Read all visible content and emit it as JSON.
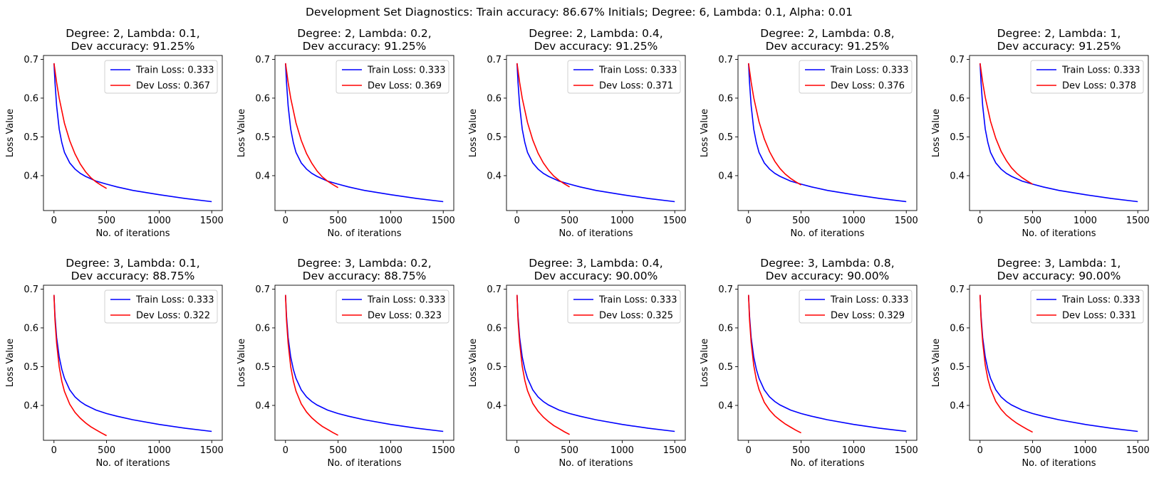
{
  "figure": {
    "suptitle": "Development Set Diagnostics: Train accuracy: 86.67% Initials; Degree: 6, Lambda: 0.1, Alpha: 0.01"
  },
  "colors": {
    "train": "#0000ff",
    "dev": "#ff0000"
  },
  "chart_data": [
    {
      "type": "line",
      "title_line1": "Degree: 2, Lambda: 0.1,",
      "title_line2": "Dev accuracy: 91.25%",
      "xlabel": "No. of iterations",
      "ylabel": "Loss Value",
      "xlim": [
        -100,
        1600
      ],
      "ylim": [
        0.31,
        0.71
      ],
      "xticks": [
        "0",
        "500",
        "1000",
        "1500"
      ],
      "yticks": [
        "0.4",
        "0.5",
        "0.6",
        "0.7"
      ],
      "series": [
        {
          "name": "Train Loss: 0.333",
          "x": [
            0,
            10,
            25,
            50,
            75,
            100,
            150,
            200,
            250,
            300,
            400,
            500,
            600,
            750,
            1000,
            1250,
            1500
          ],
          "y": [
            0.69,
            0.64,
            0.58,
            0.52,
            0.485,
            0.46,
            0.433,
            0.417,
            0.406,
            0.398,
            0.386,
            0.378,
            0.371,
            0.362,
            0.351,
            0.341,
            0.333
          ]
        },
        {
          "name": "Dev Loss: 0.367",
          "x": [
            0,
            25,
            50,
            100,
            150,
            200,
            250,
            300,
            350,
            400,
            450,
            500
          ],
          "y": [
            0.69,
            0.64,
            0.6,
            0.535,
            0.49,
            0.456,
            0.43,
            0.41,
            0.395,
            0.384,
            0.375,
            0.367
          ]
        }
      ]
    },
    {
      "type": "line",
      "title_line1": "Degree: 2, Lambda: 0.2,",
      "title_line2": "Dev accuracy: 91.25%",
      "xlabel": "No. of iterations",
      "ylabel": "Loss Value",
      "xlim": [
        -100,
        1600
      ],
      "ylim": [
        0.31,
        0.71
      ],
      "xticks": [
        "0",
        "500",
        "1000",
        "1500"
      ],
      "yticks": [
        "0.4",
        "0.5",
        "0.6",
        "0.7"
      ],
      "series": [
        {
          "name": "Train Loss: 0.333",
          "x": [
            0,
            10,
            25,
            50,
            75,
            100,
            150,
            200,
            250,
            300,
            400,
            500,
            600,
            750,
            1000,
            1250,
            1500
          ],
          "y": [
            0.69,
            0.64,
            0.58,
            0.52,
            0.485,
            0.46,
            0.433,
            0.417,
            0.406,
            0.398,
            0.386,
            0.378,
            0.371,
            0.362,
            0.351,
            0.341,
            0.333
          ]
        },
        {
          "name": "Dev Loss: 0.369",
          "x": [
            0,
            25,
            50,
            100,
            150,
            200,
            250,
            300,
            350,
            400,
            450,
            500
          ],
          "y": [
            0.69,
            0.64,
            0.6,
            0.536,
            0.491,
            0.457,
            0.432,
            0.412,
            0.397,
            0.386,
            0.377,
            0.369
          ]
        }
      ]
    },
    {
      "type": "line",
      "title_line1": "Degree: 2, Lambda: 0.4,",
      "title_line2": "Dev accuracy: 91.25%",
      "xlabel": "No. of iterations",
      "ylabel": "Loss Value",
      "xlim": [
        -100,
        1600
      ],
      "ylim": [
        0.31,
        0.71
      ],
      "xticks": [
        "0",
        "500",
        "1000",
        "1500"
      ],
      "yticks": [
        "0.4",
        "0.5",
        "0.6",
        "0.7"
      ],
      "series": [
        {
          "name": "Train Loss: 0.333",
          "x": [
            0,
            10,
            25,
            50,
            75,
            100,
            150,
            200,
            250,
            300,
            400,
            500,
            600,
            750,
            1000,
            1250,
            1500
          ],
          "y": [
            0.69,
            0.64,
            0.58,
            0.52,
            0.485,
            0.46,
            0.433,
            0.417,
            0.406,
            0.398,
            0.386,
            0.378,
            0.371,
            0.362,
            0.351,
            0.341,
            0.333
          ]
        },
        {
          "name": "Dev Loss: 0.371",
          "x": [
            0,
            25,
            50,
            100,
            150,
            200,
            250,
            300,
            350,
            400,
            450,
            500
          ],
          "y": [
            0.69,
            0.64,
            0.6,
            0.537,
            0.492,
            0.458,
            0.433,
            0.414,
            0.399,
            0.388,
            0.379,
            0.371
          ]
        }
      ]
    },
    {
      "type": "line",
      "title_line1": "Degree: 2, Lambda: 0.8,",
      "title_line2": "Dev accuracy: 91.25%",
      "xlabel": "No. of iterations",
      "ylabel": "Loss Value",
      "xlim": [
        -100,
        1600
      ],
      "ylim": [
        0.31,
        0.71
      ],
      "xticks": [
        "0",
        "500",
        "1000",
        "1500"
      ],
      "yticks": [
        "0.4",
        "0.5",
        "0.6",
        "0.7"
      ],
      "series": [
        {
          "name": "Train Loss: 0.333",
          "x": [
            0,
            10,
            25,
            50,
            75,
            100,
            150,
            200,
            250,
            300,
            400,
            500,
            600,
            750,
            1000,
            1250,
            1500
          ],
          "y": [
            0.69,
            0.64,
            0.58,
            0.52,
            0.485,
            0.46,
            0.433,
            0.417,
            0.406,
            0.398,
            0.386,
            0.378,
            0.371,
            0.362,
            0.351,
            0.341,
            0.333
          ]
        },
        {
          "name": "Dev Loss: 0.376",
          "x": [
            0,
            25,
            50,
            100,
            150,
            200,
            250,
            300,
            350,
            400,
            450,
            500
          ],
          "y": [
            0.69,
            0.641,
            0.601,
            0.539,
            0.495,
            0.462,
            0.437,
            0.418,
            0.404,
            0.393,
            0.384,
            0.376
          ]
        }
      ]
    },
    {
      "type": "line",
      "title_line1": "Degree: 2, Lambda: 1,",
      "title_line2": "Dev accuracy: 91.25%",
      "xlabel": "No. of iterations",
      "ylabel": "Loss Value",
      "xlim": [
        -100,
        1600
      ],
      "ylim": [
        0.31,
        0.71
      ],
      "xticks": [
        "0",
        "500",
        "1000",
        "1500"
      ],
      "yticks": [
        "0.4",
        "0.5",
        "0.6",
        "0.7"
      ],
      "series": [
        {
          "name": "Train Loss: 0.333",
          "x": [
            0,
            10,
            25,
            50,
            75,
            100,
            150,
            200,
            250,
            300,
            400,
            500,
            600,
            750,
            1000,
            1250,
            1500
          ],
          "y": [
            0.69,
            0.64,
            0.58,
            0.52,
            0.485,
            0.46,
            0.433,
            0.417,
            0.406,
            0.398,
            0.386,
            0.378,
            0.371,
            0.362,
            0.351,
            0.341,
            0.333
          ]
        },
        {
          "name": "Dev Loss: 0.378",
          "x": [
            0,
            25,
            50,
            100,
            150,
            200,
            250,
            300,
            350,
            400,
            450,
            500
          ],
          "y": [
            0.69,
            0.641,
            0.602,
            0.54,
            0.496,
            0.463,
            0.439,
            0.42,
            0.406,
            0.395,
            0.386,
            0.378
          ]
        }
      ]
    },
    {
      "type": "line",
      "title_line1": "Degree: 3, Lambda: 0.1,",
      "title_line2": "Dev accuracy: 88.75%",
      "xlabel": "No. of iterations",
      "ylabel": "Loss Value",
      "xlim": [
        -100,
        1600
      ],
      "ylim": [
        0.31,
        0.71
      ],
      "xticks": [
        "0",
        "500",
        "1000",
        "1500"
      ],
      "yticks": [
        "0.4",
        "0.5",
        "0.6",
        "0.7"
      ],
      "series": [
        {
          "name": "Train Loss: 0.333",
          "x": [
            0,
            10,
            25,
            50,
            75,
            100,
            150,
            200,
            250,
            300,
            400,
            500,
            600,
            750,
            1000,
            1250,
            1500
          ],
          "y": [
            0.685,
            0.63,
            0.575,
            0.525,
            0.493,
            0.47,
            0.44,
            0.422,
            0.41,
            0.401,
            0.388,
            0.379,
            0.372,
            0.363,
            0.351,
            0.341,
            0.333
          ]
        },
        {
          "name": "Dev Loss: 0.322",
          "x": [
            0,
            10,
            25,
            50,
            75,
            100,
            150,
            200,
            250,
            300,
            350,
            400,
            450,
            500
          ],
          "y": [
            0.685,
            0.62,
            0.56,
            0.5,
            0.462,
            0.436,
            0.403,
            0.382,
            0.367,
            0.355,
            0.345,
            0.337,
            0.329,
            0.322
          ]
        }
      ]
    },
    {
      "type": "line",
      "title_line1": "Degree: 3, Lambda: 0.2,",
      "title_line2": "Dev accuracy: 88.75%",
      "xlabel": "No. of iterations",
      "ylabel": "Loss Value",
      "xlim": [
        -100,
        1600
      ],
      "ylim": [
        0.31,
        0.71
      ],
      "xticks": [
        "0",
        "500",
        "1000",
        "1500"
      ],
      "yticks": [
        "0.4",
        "0.5",
        "0.6",
        "0.7"
      ],
      "series": [
        {
          "name": "Train Loss: 0.333",
          "x": [
            0,
            10,
            25,
            50,
            75,
            100,
            150,
            200,
            250,
            300,
            400,
            500,
            600,
            750,
            1000,
            1250,
            1500
          ],
          "y": [
            0.685,
            0.63,
            0.575,
            0.525,
            0.493,
            0.47,
            0.44,
            0.422,
            0.41,
            0.401,
            0.388,
            0.379,
            0.372,
            0.363,
            0.351,
            0.341,
            0.333
          ]
        },
        {
          "name": "Dev Loss: 0.323",
          "x": [
            0,
            10,
            25,
            50,
            75,
            100,
            150,
            200,
            250,
            300,
            350,
            400,
            450,
            500
          ],
          "y": [
            0.685,
            0.62,
            0.56,
            0.5,
            0.463,
            0.437,
            0.404,
            0.383,
            0.368,
            0.356,
            0.346,
            0.338,
            0.33,
            0.323
          ]
        }
      ]
    },
    {
      "type": "line",
      "title_line1": "Degree: 3, Lambda: 0.4,",
      "title_line2": "Dev accuracy: 90.00%",
      "xlabel": "No. of iterations",
      "ylabel": "Loss Value",
      "xlim": [
        -100,
        1600
      ],
      "ylim": [
        0.31,
        0.71
      ],
      "xticks": [
        "0",
        "500",
        "1000",
        "1500"
      ],
      "yticks": [
        "0.4",
        "0.5",
        "0.6",
        "0.7"
      ],
      "series": [
        {
          "name": "Train Loss: 0.333",
          "x": [
            0,
            10,
            25,
            50,
            75,
            100,
            150,
            200,
            250,
            300,
            400,
            500,
            600,
            750,
            1000,
            1250,
            1500
          ],
          "y": [
            0.685,
            0.63,
            0.575,
            0.525,
            0.493,
            0.47,
            0.44,
            0.422,
            0.41,
            0.401,
            0.388,
            0.379,
            0.372,
            0.363,
            0.351,
            0.341,
            0.333
          ]
        },
        {
          "name": "Dev Loss: 0.325",
          "x": [
            0,
            10,
            25,
            50,
            75,
            100,
            150,
            200,
            250,
            300,
            350,
            400,
            450,
            500
          ],
          "y": [
            0.685,
            0.62,
            0.561,
            0.501,
            0.464,
            0.438,
            0.405,
            0.385,
            0.37,
            0.358,
            0.348,
            0.34,
            0.332,
            0.325
          ]
        }
      ]
    },
    {
      "type": "line",
      "title_line1": "Degree: 3, Lambda: 0.8,",
      "title_line2": "Dev accuracy: 90.00%",
      "xlabel": "No. of iterations",
      "ylabel": "Loss Value",
      "xlim": [
        -100,
        1600
      ],
      "ylim": [
        0.31,
        0.71
      ],
      "xticks": [
        "0",
        "500",
        "1000",
        "1500"
      ],
      "yticks": [
        "0.4",
        "0.5",
        "0.6",
        "0.7"
      ],
      "series": [
        {
          "name": "Train Loss: 0.333",
          "x": [
            0,
            10,
            25,
            50,
            75,
            100,
            150,
            200,
            250,
            300,
            400,
            500,
            600,
            750,
            1000,
            1250,
            1500
          ],
          "y": [
            0.685,
            0.63,
            0.575,
            0.525,
            0.493,
            0.47,
            0.44,
            0.422,
            0.41,
            0.401,
            0.388,
            0.379,
            0.372,
            0.363,
            0.351,
            0.341,
            0.333
          ]
        },
        {
          "name": "Dev Loss: 0.329",
          "x": [
            0,
            10,
            25,
            50,
            75,
            100,
            150,
            200,
            250,
            300,
            350,
            400,
            450,
            500
          ],
          "y": [
            0.685,
            0.621,
            0.562,
            0.503,
            0.466,
            0.441,
            0.408,
            0.388,
            0.373,
            0.362,
            0.352,
            0.344,
            0.336,
            0.329
          ]
        }
      ]
    },
    {
      "type": "line",
      "title_line1": "Degree: 3, Lambda: 1,",
      "title_line2": "Dev accuracy: 90.00%",
      "xlabel": "No. of iterations",
      "ylabel": "Loss Value",
      "xlim": [
        -100,
        1600
      ],
      "ylim": [
        0.31,
        0.71
      ],
      "xticks": [
        "0",
        "500",
        "1000",
        "1500"
      ],
      "yticks": [
        "0.4",
        "0.5",
        "0.6",
        "0.7"
      ],
      "series": [
        {
          "name": "Train Loss: 0.333",
          "x": [
            0,
            10,
            25,
            50,
            75,
            100,
            150,
            200,
            250,
            300,
            400,
            500,
            600,
            750,
            1000,
            1250,
            1500
          ],
          "y": [
            0.685,
            0.63,
            0.575,
            0.525,
            0.493,
            0.47,
            0.44,
            0.422,
            0.41,
            0.401,
            0.388,
            0.379,
            0.372,
            0.363,
            0.351,
            0.341,
            0.333
          ]
        },
        {
          "name": "Dev Loss: 0.331",
          "x": [
            0,
            10,
            25,
            50,
            75,
            100,
            150,
            200,
            250,
            300,
            350,
            400,
            450,
            500
          ],
          "y": [
            0.685,
            0.621,
            0.563,
            0.504,
            0.468,
            0.443,
            0.41,
            0.39,
            0.375,
            0.364,
            0.354,
            0.346,
            0.338,
            0.331
          ]
        }
      ]
    }
  ]
}
